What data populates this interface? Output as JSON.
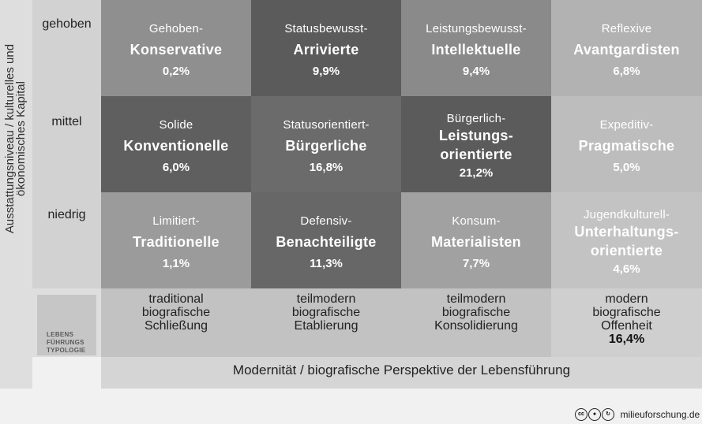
{
  "y_axis": {
    "label": "Ausstattungsniveau / kulturelles und ökonomisches Kapital"
  },
  "rows": [
    {
      "label": "gehoben"
    },
    {
      "label": "mittel"
    },
    {
      "label": "niedrig"
    }
  ],
  "cells": [
    [
      {
        "pre": "Gehoben-",
        "main": "Konservative",
        "pct": "0,2%",
        "color": "#8f8f8f"
      },
      {
        "pre": "Statusbewusst-",
        "main": "Arrivierte",
        "pct": "9,9%",
        "color": "#5b5b5b"
      },
      {
        "pre": "Leistungsbewusst-",
        "main": "Intellektuelle",
        "pct": "9,4%",
        "color": "#8a8a8a"
      },
      {
        "pre": "Reflexive",
        "main": "Avantgardisten",
        "pct": "6,8%",
        "color": "#b2b2b2"
      }
    ],
    [
      {
        "pre": "Solide",
        "main": "Konventionelle",
        "pct": "6,0%",
        "color": "#5f5f5f"
      },
      {
        "pre": "Statusorientiert-",
        "main": "Bürgerliche",
        "pct": "16,8%",
        "color": "#6b6b6b"
      },
      {
        "pre": "Bürgerlich-",
        "main1": "Leistungs-",
        "main2": "orientierte",
        "pct": "21,2%",
        "color": "#5b5b5b"
      },
      {
        "pre": "Expeditiv-",
        "main": "Pragmatische",
        "pct": "5,0%",
        "color": "#bdbdbd"
      }
    ],
    [
      {
        "pre": "Limitiert-",
        "main": "Traditionelle",
        "pct": "1,1%",
        "color": "#9b9b9b"
      },
      {
        "pre": "Defensiv-",
        "main": "Benachteiligte",
        "pct": "11,3%",
        "color": "#676767"
      },
      {
        "pre": "Konsum-",
        "main": "Materialisten",
        "pct": "7,7%",
        "color": "#a1a1a1"
      },
      {
        "pre": "Jugendkulturell-",
        "main1": "Unterhaltungs-",
        "main2": "orientierte",
        "pct": "4,6%",
        "color": "#c3c3c3"
      }
    ]
  ],
  "typology": {
    "label_lines": [
      "LEBENS",
      "FÜHRUNGS",
      "TYPOLOGIE"
    ],
    "items": [
      {
        "l1": "traditional",
        "l2": "biografische",
        "l3": "Schließung",
        "pct": "",
        "color": "#c2c2c2"
      },
      {
        "l1": "teilmodern",
        "l2": "biografische",
        "l3": "Etablierung",
        "pct": "",
        "color": "#c2c2c2"
      },
      {
        "l1": "teilmodern",
        "l2": "biografische",
        "l3": "Konsolidierung",
        "pct": "",
        "color": "#c2c2c2"
      },
      {
        "l1": "modern",
        "l2": "biografische",
        "l3": "Offenheit",
        "pct": "16,4%",
        "color": "#cfcfcf"
      }
    ]
  },
  "x_axis": {
    "label": "Modernität / biografische Perspektive der Lebensführung"
  },
  "footer": {
    "license_icons": [
      "cc-icon",
      "by-icon",
      "sa-icon"
    ],
    "site": "milieuforschung.de"
  }
}
